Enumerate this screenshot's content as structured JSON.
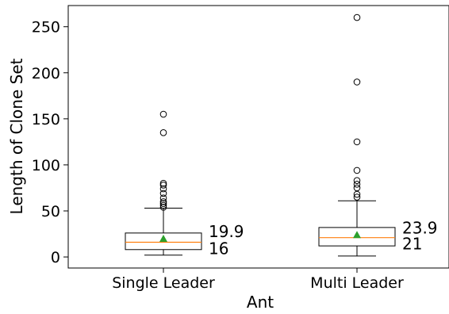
{
  "chart_data": {
    "type": "box",
    "xlabel": "Ant",
    "ylabel": "Length of Clone Set",
    "ylim": [
      -12,
      273
    ],
    "yticks": [
      0,
      50,
      100,
      150,
      200,
      250
    ],
    "grid": false,
    "categories": [
      "Single Leader",
      "Multi Leader"
    ],
    "boxes": [
      {
        "category": "Single Leader",
        "whisker_low": 2,
        "q1": 8,
        "median": 16,
        "q3": 26,
        "whisker_high": 53,
        "mean": 19.9,
        "outliers": [
          54,
          56,
          58,
          60,
          64,
          69,
          74,
          78,
          80,
          135,
          155
        ],
        "mean_label": "19.9",
        "median_label": "16"
      },
      {
        "category": "Multi Leader",
        "whisker_low": 1,
        "q1": 12,
        "median": 21,
        "q3": 32,
        "whisker_high": 61,
        "mean": 23.9,
        "outliers": [
          65,
          68,
          75,
          79,
          83,
          94,
          125,
          190,
          260
        ],
        "mean_label": "23.9",
        "median_label": "21"
      }
    ],
    "colors": {
      "box": "#000000",
      "median": "#ff7f0e",
      "mean": "#2ca02c",
      "outlier": "#000000"
    }
  }
}
